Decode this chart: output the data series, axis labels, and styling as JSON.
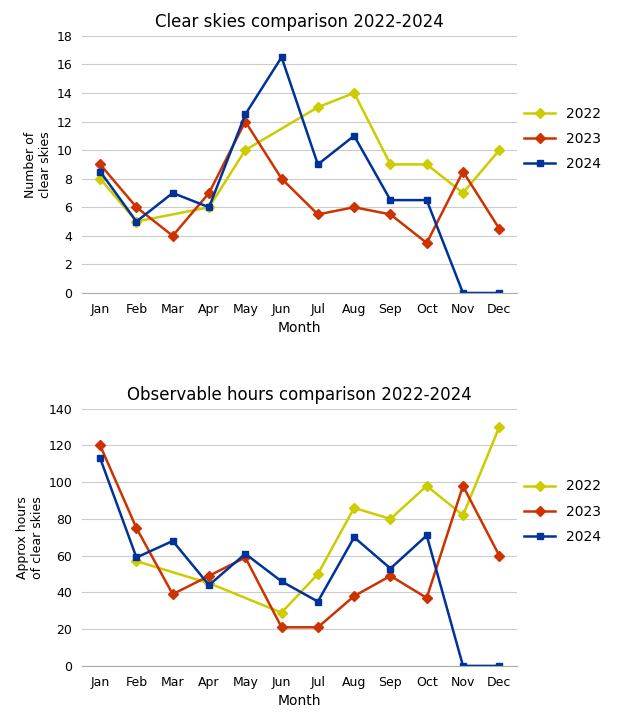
{
  "months": [
    "Jan",
    "Feb",
    "Mar",
    "Apr",
    "May",
    "Jun",
    "Jul",
    "Aug",
    "Sep",
    "Oct",
    "Nov",
    "Dec"
  ],
  "chart1_title": "Clear skies comparison 2022-2024",
  "chart1_ylabel": "Number of\nclear skies",
  "chart1_xlabel": "Month",
  "chart1_ylim": [
    0,
    18
  ],
  "chart1_yticks": [
    0,
    2,
    4,
    6,
    8,
    10,
    12,
    14,
    16,
    18
  ],
  "skies_2022": [
    8,
    5,
    null,
    6,
    10,
    null,
    13,
    14,
    9,
    9,
    7,
    10
  ],
  "skies_2023": [
    9,
    6,
    4,
    7,
    12,
    8,
    5.5,
    6,
    5.5,
    3.5,
    8.5,
    4.5
  ],
  "skies_2024": [
    8.5,
    5,
    7,
    6,
    12.5,
    16.5,
    9,
    11,
    6.5,
    6.5,
    0,
    0
  ],
  "chart2_title": "Observable hours comparison 2022-2024",
  "chart2_ylabel": "Approx hours\nof clear skies",
  "chart2_xlabel": "Month",
  "chart2_ylim": [
    0,
    140
  ],
  "chart2_yticks": [
    0,
    20,
    40,
    60,
    80,
    100,
    120,
    140
  ],
  "hours_2022": [
    null,
    57,
    null,
    45,
    null,
    29,
    50,
    86,
    80,
    98,
    82,
    130
  ],
  "hours_2023": [
    120,
    75,
    39,
    49,
    59,
    21,
    21,
    38,
    49,
    37,
    98,
    60
  ],
  "hours_2024": [
    113,
    59,
    68,
    44,
    61,
    46,
    35,
    70,
    53,
    71,
    0,
    0
  ],
  "color_2022": "#cccc00",
  "color_2023": "#cc3300",
  "color_2024": "#003399",
  "marker_2022": "D",
  "marker_2023": "D",
  "marker_2024": "s",
  "linewidth": 1.8,
  "markersize": 5,
  "background_color": "#ffffff",
  "grid_color": "#cccccc"
}
